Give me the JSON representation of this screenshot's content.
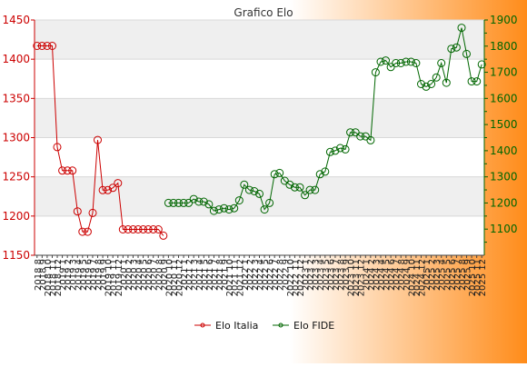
{
  "chart_data": {
    "type": "line",
    "title": "Grafico Elo",
    "colors": {
      "italia": "#cc0000",
      "fide": "#006600",
      "background_left": "#ffffff",
      "background_right": "#ff8c1a",
      "band": "#efefef"
    },
    "grid": true,
    "legend": {
      "position": "bottom-center",
      "entries": [
        "Elo Italia",
        "Elo FIDE"
      ]
    },
    "x_tick_labels": [
      "2018 8",
      "2018 9",
      "2018 10",
      "2018 11",
      "2018 12",
      "2019 1",
      "2019 2",
      "2019 3",
      "2019 4",
      "2019 5",
      "2019 6",
      "2019 7",
      "2019 8",
      "2019 9",
      "2019 10",
      "2019 11",
      "2019 12",
      "2020 1",
      "2020 2",
      "2020 3",
      "2020 4",
      "2020 5",
      "2020 6",
      "2020 7",
      "2020 8",
      "2020 9",
      "2020 10",
      "2020 11",
      "2020 12",
      "2021 1",
      "2021 2",
      "2021 3",
      "2021 4",
      "2021 5",
      "2021 6",
      "2021 7",
      "2021 8",
      "2021 9",
      "2021 10",
      "2021 11",
      "2021 12",
      "2022 1",
      "2022 2",
      "2022 3",
      "2022 4",
      "2022 5",
      "2022 6",
      "2022 7",
      "2022 8",
      "2022 9",
      "2022 10",
      "2022 11",
      "2022 12",
      "2023 1",
      "2023 2",
      "2023 3",
      "2023 4",
      "2023 5",
      "2023 6",
      "2023 7",
      "2023 8",
      "2023 9",
      "2023 10",
      "2023 11",
      "2023 12",
      "2024 1",
      "2024 2",
      "2024 3",
      "2024 4",
      "2024 5",
      "2024 6",
      "2024 7",
      "2024 8",
      "2024 9",
      "2024 10",
      "2024 11",
      "2024 12",
      "2025 1",
      "2025 2",
      "2025 3",
      "2025 4",
      "2025 5",
      "2025 6",
      "2025 7",
      "2025 8",
      "2025 9",
      "2025 10",
      "2025 11",
      "2025 12"
    ],
    "y_left": {
      "ticks": [
        1150,
        1200,
        1250,
        1300,
        1350,
        1400,
        1450
      ],
      "ylim": [
        1150,
        1450
      ]
    },
    "y_right": {
      "ticks": [
        1100,
        1200,
        1300,
        1400,
        1500,
        1600,
        1700,
        1800,
        1900
      ],
      "ylim": [
        1000,
        1900
      ]
    },
    "series": [
      {
        "name": "Elo Italia",
        "axis": "left",
        "start_index": 0,
        "values": [
          1417,
          1417,
          1417,
          1417,
          1288,
          1258,
          1258,
          1258,
          1206,
          1180,
          1180,
          1204,
          1297,
          1233,
          1233,
          1236,
          1242,
          1183,
          1183,
          1183,
          1183,
          1183,
          1183,
          1183,
          1183,
          1175
        ]
      },
      {
        "name": "Elo FIDE",
        "axis": "right",
        "start_index": 26,
        "values": [
          1200,
          1200,
          1200,
          1200,
          1200,
          1215,
          1205,
          1205,
          1195,
          1170,
          1175,
          1180,
          1175,
          1180,
          1210,
          1270,
          1250,
          1245,
          1235,
          1175,
          1200,
          1310,
          1315,
          1285,
          1270,
          1260,
          1260,
          1230,
          1250,
          1250,
          1310,
          1320,
          1395,
          1400,
          1410,
          1405,
          1470,
          1470,
          1455,
          1455,
          1440,
          1700,
          1740,
          1745,
          1720,
          1735,
          1735,
          1740,
          1740,
          1735,
          1655,
          1645,
          1655,
          1680,
          1735,
          1660,
          1790,
          1795,
          1870,
          1770,
          1665,
          1665,
          1730
        ]
      }
    ]
  }
}
